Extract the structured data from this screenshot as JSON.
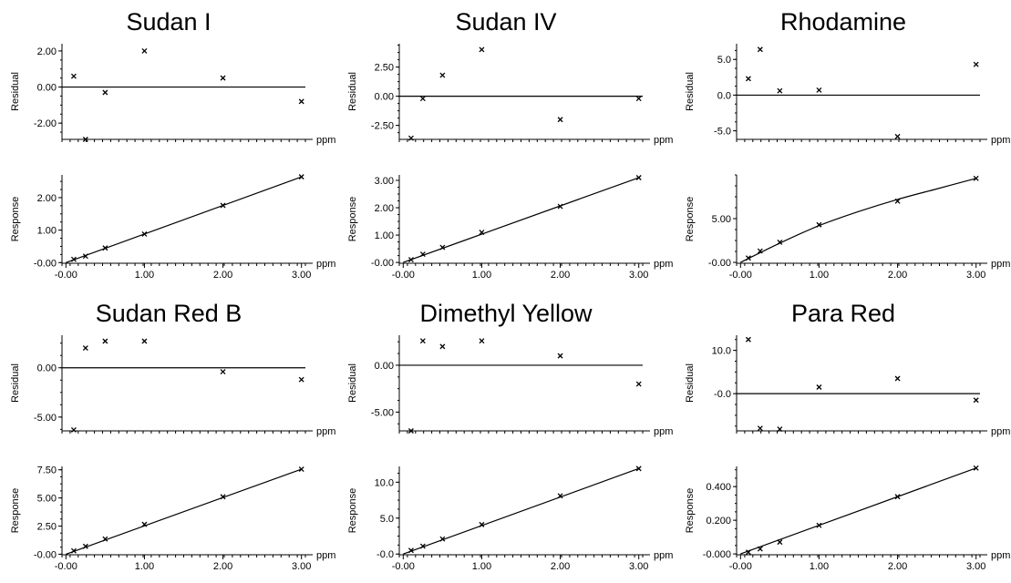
{
  "figure": {
    "x_unit": "ppm",
    "residual_label": "Residual",
    "response_label": "Response"
  },
  "chart_data": [
    {
      "type": "scatter",
      "title": "Sudan I",
      "residual": {
        "x": [
          0.1,
          0.25,
          0.5,
          1.0,
          2.0,
          3.0
        ],
        "y": [
          0.6,
          -2.9,
          -0.3,
          2.0,
          0.5,
          -0.8
        ],
        "ylim": [
          -2.9,
          2.4
        ],
        "yticks": [
          -2.0,
          0.0,
          2.0
        ],
        "ytick_labels": [
          "-2.00",
          "0.00",
          "2.00"
        ]
      },
      "response": {
        "x": [
          0.1,
          0.25,
          0.5,
          1.0,
          2.0,
          3.0
        ],
        "y": [
          0.1,
          0.2,
          0.45,
          0.88,
          1.76,
          2.64
        ],
        "ylim": [
          -0.02,
          2.7
        ],
        "yticks": [
          0.0,
          1.0,
          2.0
        ],
        "ytick_labels": [
          "-0.00",
          "1.00",
          "2.00"
        ],
        "fit_line": [
          [
            0.0,
            0.0
          ],
          [
            3.0,
            2.64
          ]
        ]
      },
      "xlim": [
        -0.05,
        3.05
      ],
      "xticks": [
        0.0,
        1.0,
        2.0,
        3.0
      ],
      "xtick_labels": [
        "-0.00",
        "1.00",
        "2.00",
        "3.00"
      ]
    },
    {
      "type": "scatter",
      "title": "Sudan IV",
      "residual": {
        "x": [
          0.1,
          0.25,
          0.5,
          1.0,
          2.0,
          3.0
        ],
        "y": [
          -3.6,
          -0.2,
          1.8,
          4.0,
          -2.0,
          -0.2
        ],
        "ylim": [
          -3.7,
          4.5
        ],
        "yticks": [
          -2.5,
          0.0,
          2.5
        ],
        "ytick_labels": [
          "-2.50",
          "0.00",
          "2.50"
        ]
      },
      "response": {
        "x": [
          0.1,
          0.25,
          0.5,
          1.0,
          2.0,
          3.0
        ],
        "y": [
          0.1,
          0.3,
          0.55,
          1.1,
          2.05,
          3.1
        ],
        "ylim": [
          -0.03,
          3.2
        ],
        "yticks": [
          0.0,
          1.0,
          2.0,
          3.0
        ],
        "ytick_labels": [
          "-0.00",
          "1.00",
          "2.00",
          "3.00"
        ],
        "fit_line": [
          [
            0.0,
            0.0
          ],
          [
            3.0,
            3.1
          ]
        ]
      },
      "xlim": [
        -0.05,
        3.05
      ],
      "xticks": [
        0.0,
        1.0,
        2.0,
        3.0
      ],
      "xtick_labels": [
        "-0.00",
        "1.00",
        "2.00",
        "3.00"
      ]
    },
    {
      "type": "scatter",
      "title": "Rhodamine",
      "residual": {
        "x": [
          0.1,
          0.25,
          0.5,
          1.0,
          2.0,
          3.0
        ],
        "y": [
          2.3,
          6.4,
          0.6,
          0.7,
          -5.8,
          4.3
        ],
        "ylim": [
          -6.2,
          7.2
        ],
        "yticks": [
          -5.0,
          0.0,
          5.0
        ],
        "ytick_labels": [
          "-5.0",
          "0.0",
          "5.0"
        ]
      },
      "response": {
        "x": [
          0.1,
          0.25,
          0.5,
          1.0,
          2.0,
          3.0
        ],
        "y": [
          0.5,
          1.3,
          2.3,
          4.3,
          7.0,
          9.6
        ],
        "ylim": [
          -0.1,
          10.0
        ],
        "yticks": [
          0.0,
          5.0
        ],
        "ytick_labels": [
          "-0.00",
          "5.00"
        ],
        "fit_curve": [
          [
            0.0,
            0.0
          ],
          [
            0.5,
            2.2
          ],
          [
            1.0,
            4.2
          ],
          [
            1.5,
            5.8
          ],
          [
            2.0,
            7.2
          ],
          [
            2.5,
            8.4
          ],
          [
            3.0,
            9.6
          ]
        ]
      },
      "xlim": [
        -0.05,
        3.05
      ],
      "xticks": [
        0.0,
        1.0,
        2.0,
        3.0
      ],
      "xtick_labels": [
        "-0.00",
        "1.00",
        "2.00",
        "3.00"
      ]
    },
    {
      "type": "scatter",
      "title": "Sudan Red B",
      "residual": {
        "x": [
          0.1,
          0.25,
          0.5,
          1.0,
          2.0,
          3.0
        ],
        "y": [
          -6.3,
          2.0,
          2.7,
          2.7,
          -0.4,
          -1.2
        ],
        "ylim": [
          -6.4,
          3.3
        ],
        "yticks": [
          -5.0,
          0.0
        ],
        "ytick_labels": [
          "-5.00",
          "0.00"
        ]
      },
      "response": {
        "x": [
          0.1,
          0.25,
          0.5,
          1.0,
          2.0,
          3.0
        ],
        "y": [
          0.3,
          0.7,
          1.35,
          2.65,
          5.1,
          7.55
        ],
        "ylim": [
          -0.05,
          7.8
        ],
        "yticks": [
          0.0,
          2.5,
          5.0,
          7.5
        ],
        "ytick_labels": [
          "-0.00",
          "2.50",
          "5.00",
          "7.50"
        ],
        "fit_line": [
          [
            0.0,
            0.0
          ],
          [
            3.0,
            7.55
          ]
        ]
      },
      "xlim": [
        -0.05,
        3.05
      ],
      "xticks": [
        0.0,
        1.0,
        2.0,
        3.0
      ],
      "xtick_labels": [
        "-0.00",
        "1.00",
        "2.00",
        "3.00"
      ]
    },
    {
      "type": "scatter",
      "title": "Dimethyl Yellow",
      "residual": {
        "x": [
          0.1,
          0.25,
          0.5,
          1.0,
          2.0,
          3.0
        ],
        "y": [
          -7.0,
          2.6,
          2.0,
          2.6,
          1.0,
          -2.0
        ],
        "ylim": [
          -7.0,
          3.2
        ],
        "yticks": [
          -5.0,
          0.0
        ],
        "ytick_labels": [
          "-5.00",
          "0.00"
        ]
      },
      "response": {
        "x": [
          0.1,
          0.25,
          0.5,
          1.0,
          2.0,
          3.0
        ],
        "y": [
          0.5,
          1.1,
          2.1,
          4.1,
          8.1,
          11.9
        ],
        "ylim": [
          -0.1,
          12.2
        ],
        "yticks": [
          0.0,
          5.0,
          10.0
        ],
        "ytick_labels": [
          "-0.0",
          "5.0",
          "10.0"
        ],
        "fit_line": [
          [
            0.0,
            0.0
          ],
          [
            3.0,
            11.9
          ]
        ]
      },
      "xlim": [
        -0.05,
        3.05
      ],
      "xticks": [
        0.0,
        1.0,
        2.0,
        3.0
      ],
      "xtick_labels": [
        "-0.00",
        "1.00",
        "2.00",
        "3.00"
      ]
    },
    {
      "type": "scatter",
      "title": "Para Red",
      "residual": {
        "x": [
          0.1,
          0.25,
          0.5,
          1.0,
          2.0,
          3.0
        ],
        "y": [
          12.5,
          -8.0,
          -8.2,
          1.5,
          3.5,
          -1.5
        ],
        "ylim": [
          -8.6,
          13.5
        ],
        "yticks": [
          0.0,
          10.0
        ],
        "ytick_labels": [
          "-0.0",
          "10.0"
        ]
      },
      "response": {
        "x": [
          0.1,
          0.25,
          0.5,
          1.0,
          2.0,
          3.0
        ],
        "y": [
          0.01,
          0.03,
          0.07,
          0.17,
          0.34,
          0.51
        ],
        "ylim": [
          -0.005,
          0.52
        ],
        "yticks": [
          0.0,
          0.2,
          0.4
        ],
        "ytick_labels": [
          "-0.000",
          "0.200",
          "0.400"
        ],
        "fit_line": [
          [
            0.0,
            0.0
          ],
          [
            3.0,
            0.51
          ]
        ]
      },
      "xlim": [
        -0.05,
        3.05
      ],
      "xticks": [
        0.0,
        1.0,
        2.0,
        3.0
      ],
      "xtick_labels": [
        "-0.00",
        "1.00",
        "2.00",
        "3.00"
      ]
    }
  ]
}
